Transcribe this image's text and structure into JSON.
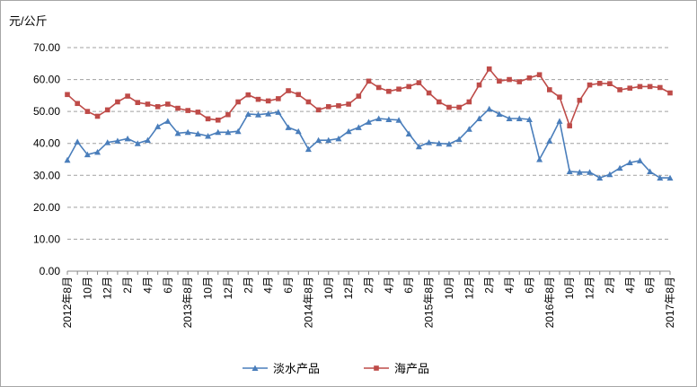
{
  "chart_data": {
    "type": "line",
    "ylabel": "元/公斤",
    "ylim": [
      0,
      70
    ],
    "yticks": [
      "0.00",
      "10.00",
      "20.00",
      "30.00",
      "40.00",
      "50.00",
      "60.00",
      "70.00"
    ],
    "grid": true,
    "legend_position": "bottom",
    "x_labels": [
      "2012年8月",
      "",
      "10月",
      "",
      "12月",
      "",
      "2月",
      "",
      "4月",
      "",
      "6月",
      "",
      "2013年8月",
      "",
      "10月",
      "",
      "12月",
      "",
      "2月",
      "",
      "4月",
      "",
      "6月",
      "",
      "2014年8月",
      "",
      "10月",
      "",
      "12月",
      "",
      "2月",
      "",
      "4月",
      "",
      "6月",
      "",
      "2015年8月",
      "",
      "10月",
      "",
      "12月",
      "",
      "2月",
      "",
      "4月",
      "",
      "6月",
      "",
      "2016年8月",
      "",
      "10月",
      "",
      "12月",
      "",
      "2月",
      "",
      "4月",
      "",
      "6月",
      "",
      "2017年8月"
    ],
    "series": [
      {
        "name": "淡水产品",
        "color": "#4a7ebb",
        "marker": "triangle",
        "values": [
          34.8,
          40.5,
          36.5,
          37.3,
          40.3,
          40.8,
          41.5,
          40.0,
          41.0,
          45.3,
          47.0,
          43.2,
          43.5,
          43.0,
          42.3,
          43.5,
          43.5,
          43.8,
          49.2,
          49.0,
          49.3,
          49.8,
          45.0,
          43.8,
          38.2,
          41.0,
          41.0,
          41.5,
          43.8,
          45.0,
          46.7,
          47.8,
          47.5,
          47.3,
          43.0,
          39.0,
          40.3,
          40.0,
          39.8,
          41.3,
          44.5,
          47.8,
          50.8,
          49.2,
          47.8,
          47.8,
          47.5,
          35.0,
          40.8,
          47.0,
          31.2,
          31.0,
          31.0,
          29.2,
          30.3,
          32.3,
          34.0,
          34.6,
          31.2,
          29.2,
          29.2
        ]
      },
      {
        "name": "海产品",
        "color": "#be4b48",
        "marker": "square",
        "values": [
          55.3,
          52.5,
          50.0,
          48.5,
          50.5,
          53.0,
          54.8,
          52.8,
          52.3,
          51.5,
          52.3,
          51.0,
          50.3,
          49.8,
          47.7,
          47.3,
          49.0,
          53.0,
          55.2,
          53.8,
          53.3,
          54.0,
          56.5,
          55.3,
          53.0,
          50.5,
          51.5,
          51.8,
          52.3,
          54.8,
          59.5,
          57.5,
          56.3,
          57.0,
          57.8,
          59.0,
          55.8,
          53.0,
          51.3,
          51.3,
          53.0,
          58.3,
          63.3,
          59.5,
          60.0,
          59.3,
          60.5,
          61.5,
          56.8,
          54.5,
          45.5,
          53.5,
          58.3,
          58.8,
          58.7,
          56.8,
          57.3,
          57.8,
          57.8,
          57.5,
          55.8
        ]
      }
    ]
  }
}
